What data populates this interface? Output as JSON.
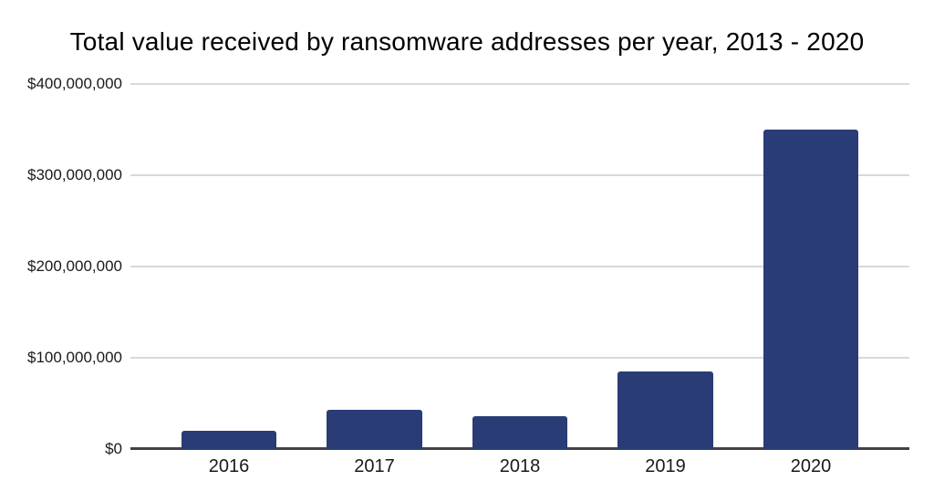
{
  "title": "Total value received by ransomware addresses per year, 2013 - 2020",
  "colors": {
    "bar": "#293c76",
    "gridline": "#d9d9d9",
    "axis_line": "#424242",
    "title_text": "#000000",
    "label_text": "#1a1a1a",
    "background": "#ffffff"
  },
  "chart_data": {
    "type": "bar",
    "title": "Total value received by ransomware addresses per year, 2013 - 2020",
    "categories": [
      "2016",
      "2017",
      "2018",
      "2019",
      "2020"
    ],
    "values": [
      20000000,
      43000000,
      36000000,
      85000000,
      350000000
    ],
    "xlabel": "",
    "ylabel": "",
    "ylim": [
      0,
      400000000
    ],
    "grid": true,
    "legend": "none",
    "y_ticks": [
      {
        "value": 0,
        "label": "$0"
      },
      {
        "value": 100000000,
        "label": "$100,000,000"
      },
      {
        "value": 200000000,
        "label": "$200,000,000"
      },
      {
        "value": 300000000,
        "label": "$300,000,000"
      },
      {
        "value": 400000000,
        "label": "$400,000,000"
      }
    ]
  }
}
